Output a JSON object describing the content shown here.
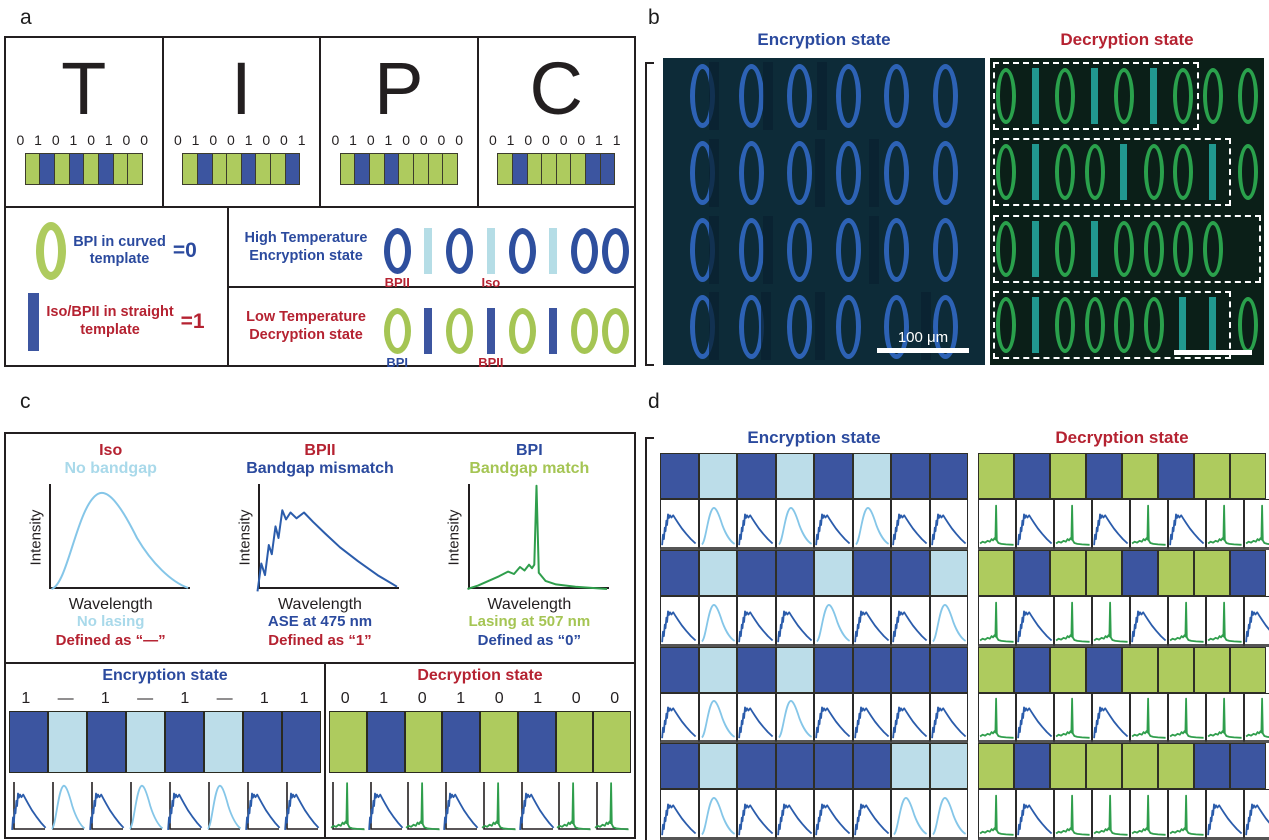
{
  "figure": {
    "panel_labels": {
      "a": "a",
      "b": "b",
      "c": "c",
      "d": "d"
    }
  },
  "colors": {
    "bpi_green": "#a5c554",
    "bpii_dark_blue": "#3c55a0",
    "iso_light_blue": "#bcdde9",
    "red_text": "#b52231",
    "blue_text": "#2b4a9e",
    "light_blue_text": "#a9d9ea",
    "green_text": "#a5c554",
    "enc_micrograph_bg": "#0d2b38",
    "enc_ellipse": "#2d62b5",
    "dec_micrograph_bg": "#0b1f18",
    "dec_ellipse": "#2aa14c",
    "dec_bar": "#21988f",
    "ase_curve": "#2b5cab",
    "hump_curve": "#85c6e8",
    "lasing_curve": "#2f9e4c"
  },
  "panel_a": {
    "letters": [
      {
        "char": "T",
        "code": "01010100"
      },
      {
        "char": "I",
        "code": "01001001"
      },
      {
        "char": "P",
        "code": "01010000"
      },
      {
        "char": "C",
        "code": "01000011"
      }
    ],
    "legend": [
      {
        "text_line1": "BPI in curved",
        "text_line2": "template",
        "equals": "=0"
      },
      {
        "text_line1": "Iso/BPII in straight",
        "text_line2": "template",
        "equals": "=1"
      }
    ],
    "states": [
      {
        "title_line1": "High Temperature",
        "title_line2": "Encryption state",
        "code": "01010100",
        "zero_symbol": "darkblue-ellipse",
        "one_symbol": "lightblue-bar",
        "annotations": [
          {
            "index": 0,
            "text": "BPII",
            "color": "red"
          },
          {
            "index": 3,
            "text": "Iso",
            "color": "red"
          }
        ]
      },
      {
        "title_line1": "Low Temperature",
        "title_line2": "Decryption state",
        "code": "01010100",
        "zero_symbol": "green-ellipse",
        "one_symbol": "darkblue-bar",
        "annotations": [
          {
            "index": 0,
            "text": "BPI",
            "color": "blue"
          },
          {
            "index": 3,
            "text": "BPII",
            "color": "red"
          }
        ]
      }
    ]
  },
  "panel_b": {
    "encryption_title": "Encryption state",
    "decryption_title": "Decryption state",
    "scale_bar_label": "100 μm",
    "encryption_rows": 4,
    "encryption_cols": 6,
    "decryption_codes": [
      "01010100",
      "01001001",
      "01010000",
      "01000011"
    ]
  },
  "panel_c": {
    "columns": [
      {
        "phase": "Iso",
        "phase_color": "red",
        "bandgap": "No bandgap",
        "bandgap_color": "lblue",
        "curve": "hump",
        "ylabel": "Intensity",
        "xlabel": "Wavelength",
        "result": "No lasing",
        "result_color": "lblue",
        "definition": "Defined as “—”",
        "definition_color": "red"
      },
      {
        "phase": "BPII",
        "phase_color": "red",
        "bandgap": "Bandgap mismatch",
        "bandgap_color": "blue",
        "curve": "ase",
        "ylabel": "Intensity",
        "xlabel": "Wavelength",
        "result": "ASE at 475 nm",
        "result_color": "blue",
        "definition": "Defined as “1”",
        "definition_color": "red"
      },
      {
        "phase": "BPI",
        "phase_color": "blue",
        "bandgap": "Bandgap match",
        "bandgap_color": "green",
        "curve": "bpi_big",
        "ylabel": "Intensity",
        "xlabel": "Wavelength",
        "result": "Lasing at 507 nm",
        "result_color": "green",
        "definition": "Defined as “0”",
        "definition_color": "blue"
      }
    ],
    "encryption": {
      "title": "Encryption state",
      "digits": [
        "1",
        "—",
        "1",
        "—",
        "1",
        "—",
        "1",
        "1"
      ],
      "code": "01010100"
    },
    "decryption": {
      "title": "Decryption state",
      "digits": [
        "0",
        "1",
        "0",
        "1",
        "0",
        "1",
        "0",
        "0"
      ],
      "code": "01010100"
    }
  },
  "panel_d": {
    "encryption_title": "Encryption state",
    "decryption_title": "Decryption state",
    "codes": [
      "01010100",
      "01001001",
      "01010000",
      "01000011"
    ]
  }
}
